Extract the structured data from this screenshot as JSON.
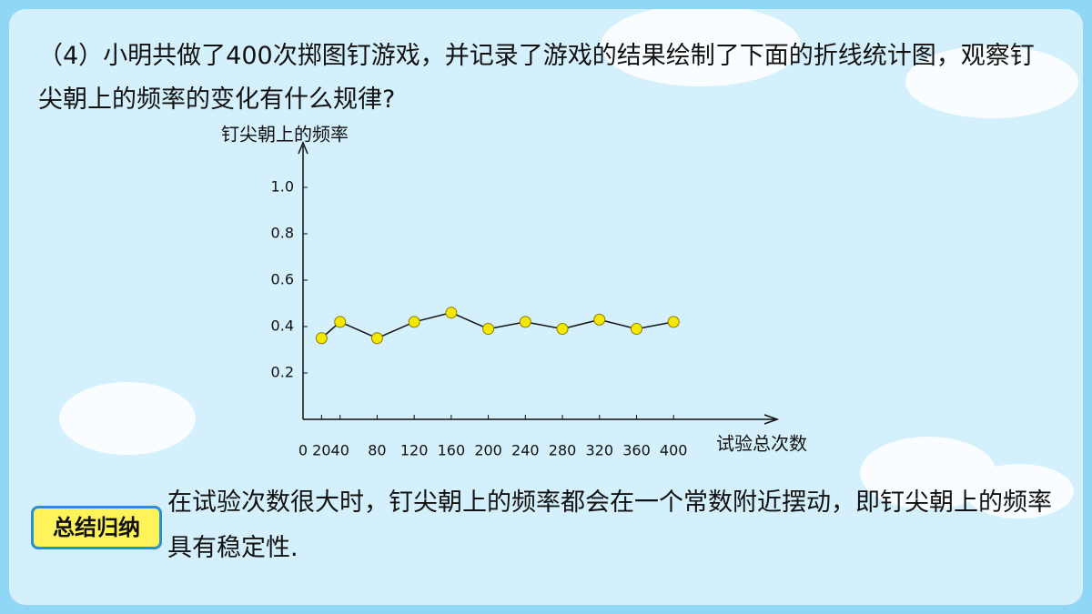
{
  "question": "（4）小明共做了400次掷图钉游戏，并记录了游戏的结果绘制了下面的折线统计图，观察钉尖朝上的频率的变化有什么规律?",
  "summary": {
    "badge": "总结归纳",
    "text": "在试验次数很大时，钉尖朝上的频率都会在一个常数附近摆动，即钉尖朝上的频率具有稳定性."
  },
  "chart_data": {
    "type": "line",
    "y_label": "钉尖朝上的频率",
    "x_label": "试验总次数",
    "x": [
      20,
      40,
      80,
      120,
      160,
      200,
      240,
      280,
      320,
      360,
      400
    ],
    "series": [
      {
        "color": "#f5e800",
        "values": [
          0.35,
          0.42,
          0.35,
          0.42,
          0.46,
          0.39,
          0.42,
          0.39,
          0.43,
          0.39,
          0.42
        ]
      }
    ],
    "xlim": [
      0,
      500
    ],
    "xticks": [
      0,
      20,
      40,
      80,
      120,
      160,
      200,
      240,
      280,
      320,
      360,
      400
    ],
    "ylim": [
      0,
      1.2
    ],
    "yticks": [
      0.2,
      0.4,
      0.6,
      0.8,
      {
        "value": 1,
        "label": "1.0"
      }
    ]
  }
}
